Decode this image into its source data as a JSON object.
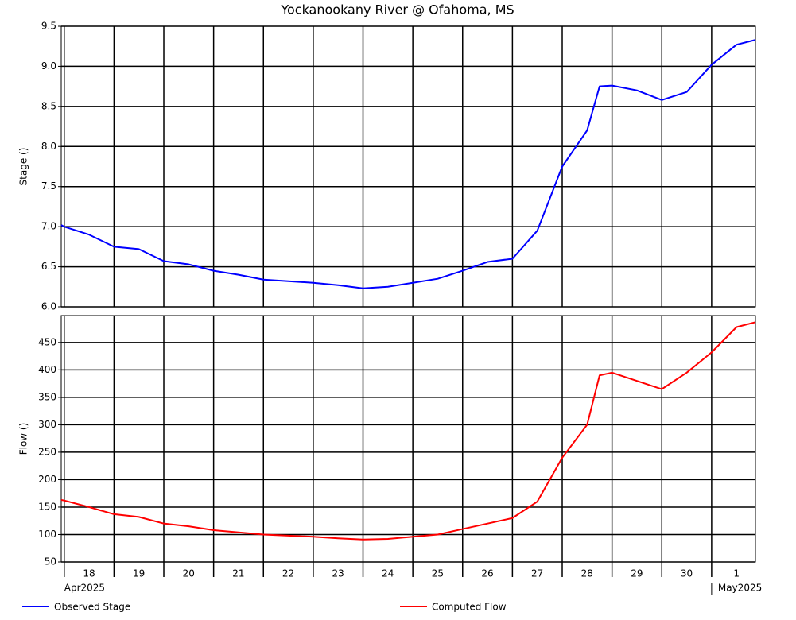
{
  "chart_data": [
    {
      "type": "line",
      "title": "Yockanookany River @ Ofahoma, MS",
      "ylabel": "Stage ()",
      "x": [
        -0.06,
        0,
        0.5,
        1,
        1.5,
        2,
        2.5,
        3,
        3.5,
        4,
        4.5,
        5,
        5.5,
        6,
        6.5,
        7,
        7.5,
        8,
        8.5,
        9,
        9.5,
        10,
        10.5,
        10.75,
        11,
        11.5,
        12,
        12.5,
        13,
        13.5,
        13.88
      ],
      "series": [
        {
          "name": "Observed Stage",
          "color": "#0000ff",
          "values": [
            7.02,
            7.0,
            6.9,
            6.75,
            6.72,
            6.57,
            6.53,
            6.45,
            6.4,
            6.34,
            6.32,
            6.3,
            6.27,
            6.23,
            6.25,
            6.3,
            6.35,
            6.45,
            6.56,
            6.6,
            6.95,
            7.75,
            8.2,
            8.75,
            8.76,
            8.7,
            8.58,
            8.68,
            9.02,
            9.27,
            9.33
          ]
        }
      ],
      "xlim": [
        -0.06,
        13.88
      ],
      "xticks": [
        0,
        1,
        2,
        3,
        4,
        5,
        6,
        7,
        8,
        9,
        10,
        11,
        12,
        13
      ],
      "ylim": [
        6,
        9.5
      ],
      "yticks": [
        {
          "value": 6,
          "label": "6.0"
        },
        6.5,
        {
          "value": 7,
          "label": "7.0"
        },
        7.5,
        {
          "value": 8,
          "label": "8.0"
        },
        8.5,
        {
          "value": 9,
          "label": "9.0"
        },
        9.5
      ],
      "grid": true
    },
    {
      "type": "line",
      "ylabel": "Flow ()",
      "x": [
        -0.06,
        0,
        0.5,
        1,
        1.5,
        2,
        2.5,
        3,
        3.5,
        4,
        4.5,
        5,
        5.5,
        6,
        6.5,
        7,
        7.5,
        8,
        8.5,
        9,
        9.5,
        10,
        10.5,
        10.75,
        11,
        11.5,
        12,
        12.5,
        13,
        13.5,
        13.88
      ],
      "series": [
        {
          "name": "Computed Flow",
          "color": "#ff0000",
          "values": [
            163,
            162,
            150,
            137,
            132,
            120,
            115,
            108,
            104,
            100,
            98,
            96,
            93,
            91,
            92,
            96,
            100,
            110,
            120,
            130,
            160,
            240,
            300,
            390,
            395,
            380,
            365,
            395,
            432,
            478,
            487
          ]
        }
      ],
      "xlim": [
        -0.06,
        13.88
      ],
      "xticks": [
        {
          "value": 0,
          "label": "18"
        },
        {
          "value": 1,
          "label": "19"
        },
        {
          "value": 2,
          "label": "20"
        },
        {
          "value": 3,
          "label": "21"
        },
        {
          "value": 4,
          "label": "22"
        },
        {
          "value": 5,
          "label": "23"
        },
        {
          "value": 6,
          "label": "24"
        },
        {
          "value": 7,
          "label": "25"
        },
        {
          "value": 8,
          "label": "26"
        },
        {
          "value": 9,
          "label": "27"
        },
        {
          "value": 10,
          "label": "28"
        },
        {
          "value": 11,
          "label": "29"
        },
        {
          "value": 12,
          "label": "30"
        },
        {
          "value": 13,
          "label": "1"
        }
      ],
      "month_labels": [
        {
          "value": 0,
          "label": "Apr2025"
        },
        {
          "value": 13,
          "label": "May2025"
        }
      ],
      "ylim": [
        50,
        499
      ],
      "yticks": [
        50,
        100,
        150,
        200,
        250,
        300,
        350,
        400,
        450
      ],
      "grid": true
    }
  ]
}
